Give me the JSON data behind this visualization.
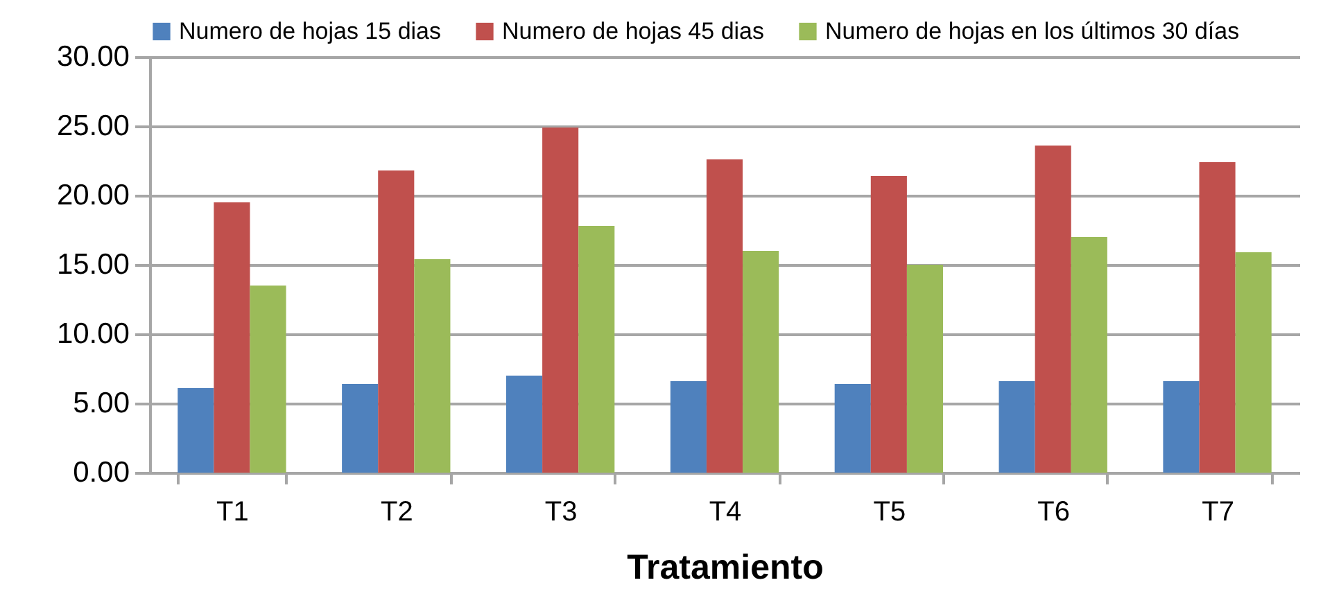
{
  "chart_data": {
    "type": "bar",
    "xlabel": "Tratamiento",
    "categories": [
      "T1",
      "T2",
      "T3",
      "T4",
      "T5",
      "T6",
      "T7"
    ],
    "series": [
      {
        "name": "Numero de hojas 15 dias",
        "color": "#4f81bd",
        "values": [
          6.1,
          6.4,
          7.0,
          6.6,
          6.4,
          6.6,
          6.6
        ]
      },
      {
        "name": "Numero de hojas 45 dias",
        "color": "#c0504d",
        "values": [
          19.5,
          21.8,
          24.9,
          22.6,
          21.4,
          23.6,
          22.4
        ]
      },
      {
        "name": "Numero de hojas en los últimos 30 días",
        "color": "#9bbb59",
        "values": [
          13.5,
          15.4,
          17.8,
          16.0,
          15.0,
          17.0,
          15.9
        ]
      }
    ],
    "ylim": [
      0,
      30
    ],
    "yticks": [
      {
        "value": 0,
        "label": "0.00"
      },
      {
        "value": 5,
        "label": "5.00"
      },
      {
        "value": 10,
        "label": "10.00"
      },
      {
        "value": 15,
        "label": "15.00"
      },
      {
        "value": 20,
        "label": "20.00"
      },
      {
        "value": 25,
        "label": "25.00"
      },
      {
        "value": 30,
        "label": "30.00"
      }
    ],
    "grid": "y",
    "legend": "top"
  }
}
